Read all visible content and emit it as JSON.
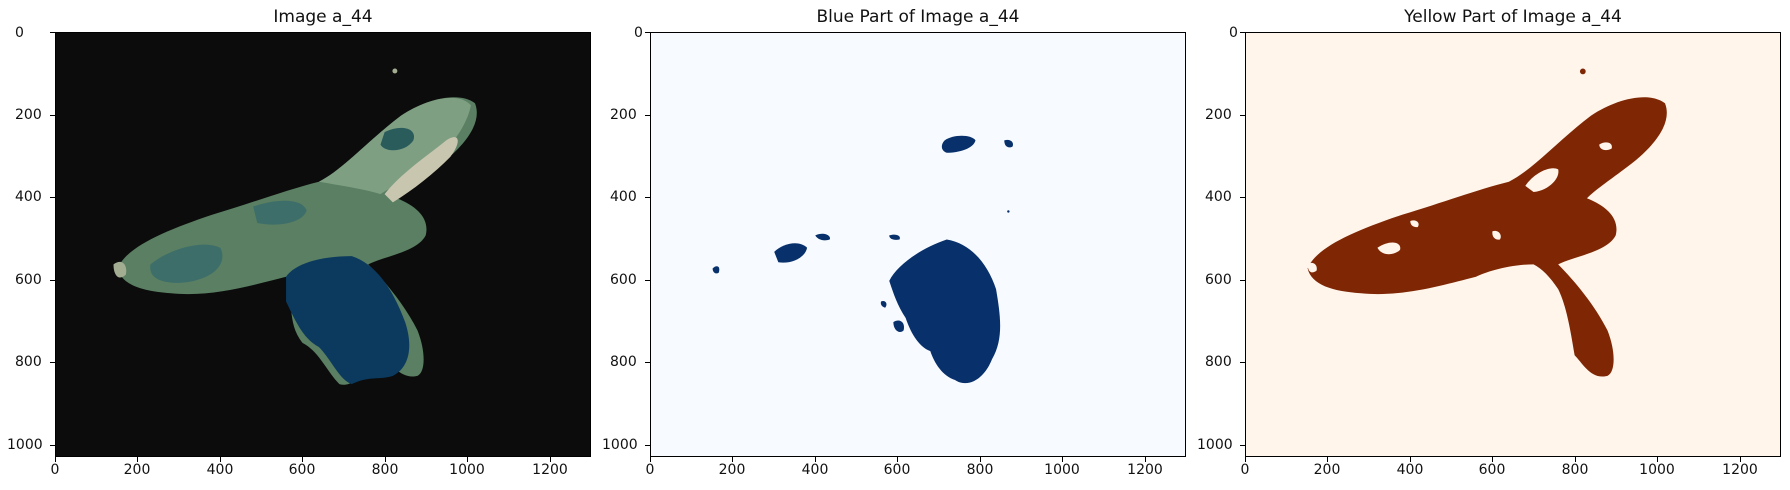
{
  "panels": [
    {
      "title": "Image a_44",
      "background": "#0c0c0c",
      "blob_color": "#5a7f62",
      "x_ticks": [
        "0",
        "200",
        "400",
        "600",
        "800",
        "1000",
        "1200"
      ],
      "y_ticks": [
        "0",
        "200",
        "400",
        "600",
        "800",
        "1000"
      ]
    },
    {
      "title": "Blue Part of Image a_44",
      "background": "#f7fbff",
      "blob_color": "#08306b",
      "x_ticks": [
        "0",
        "200",
        "400",
        "600",
        "800",
        "1000",
        "1200"
      ],
      "y_ticks": [
        "0",
        "200",
        "400",
        "600",
        "800",
        "1000"
      ]
    },
    {
      "title": "Yellow Part of Image a_44",
      "background": "#fff5eb",
      "blob_color": "#7f2704",
      "x_ticks": [
        "0",
        "200",
        "400",
        "600",
        "800",
        "1000",
        "1200"
      ],
      "y_ticks": [
        "0",
        "200",
        "400",
        "600",
        "800",
        "1000"
      ]
    }
  ]
}
